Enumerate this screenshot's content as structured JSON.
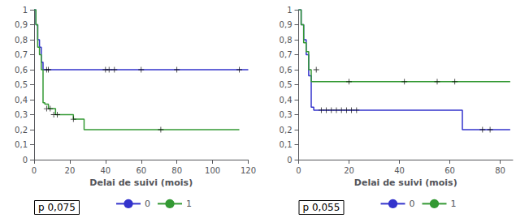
{
  "chart_data": [
    {
      "type": "step",
      "xlabel": "Delai de suivi (mois)",
      "annotation": "p 0,075",
      "legend": "bottom",
      "grid": false,
      "xlim": [
        0,
        120
      ],
      "ylim": [
        0,
        1
      ],
      "xticks": [
        0,
        20,
        40,
        60,
        80,
        100,
        120
      ],
      "yticks": [
        0,
        {
          "value": 0.1,
          "label": "0,1"
        },
        {
          "value": 0.2,
          "label": "0,2"
        },
        {
          "value": 0.3,
          "label": "0,3"
        },
        {
          "value": 0.4,
          "label": "0,4"
        },
        {
          "value": 0.5,
          "label": "0,5"
        },
        {
          "value": 0.6,
          "label": "0,6"
        },
        {
          "value": 0.7,
          "label": "0,7"
        },
        {
          "value": 0.8,
          "label": "0,8"
        },
        {
          "value": 0.9,
          "label": "0,9"
        },
        1
      ],
      "series": [
        {
          "name": "0",
          "color": "#3333cc",
          "x": [
            0,
            1,
            2,
            3,
            4,
            5,
            6,
            120
          ],
          "values": [
            1,
            0.9,
            0.8,
            0.75,
            0.65,
            0.6,
            0.6,
            0.6
          ]
        },
        {
          "name": "1",
          "color": "#339933",
          "x": [
            0,
            1,
            2,
            3,
            4,
            5,
            6,
            8,
            10,
            12,
            20,
            22,
            25,
            28,
            50,
            52,
            70,
            115
          ],
          "values": [
            1,
            0.9,
            0.75,
            0.7,
            0.6,
            0.38,
            0.37,
            0.34,
            0.34,
            0.3,
            0.3,
            0.27,
            0.27,
            0.2,
            0.2,
            0.2,
            0.2,
            0.2
          ]
        },
        {
          "type": "scatter",
          "marker": "plus",
          "color": "#000000",
          "x": [
            7,
            8,
            40,
            42,
            45,
            60,
            80,
            115
          ],
          "values": [
            0.6,
            0.6,
            0.6,
            0.6,
            0.6,
            0.6,
            0.6,
            0.6
          ]
        },
        {
          "type": "scatter",
          "marker": "plus",
          "color": "#000000",
          "x": [
            7,
            9,
            11,
            13,
            22,
            71
          ],
          "values": [
            0.34,
            0.34,
            0.3,
            0.3,
            0.27,
            0.2
          ]
        }
      ]
    },
    {
      "type": "step",
      "xlabel": "Delai de suivi (mois)",
      "annotation": "p 0,055",
      "legend": "bottom",
      "grid": false,
      "xlim": [
        0,
        85
      ],
      "ylim": [
        0,
        1
      ],
      "xticks": [
        0,
        20,
        40,
        60,
        80
      ],
      "yticks": [
        0,
        {
          "value": 0.1,
          "label": "0,1"
        },
        {
          "value": 0.2,
          "label": "0,2"
        },
        {
          "value": 0.3,
          "label": "0,3"
        },
        {
          "value": 0.4,
          "label": "0,4"
        },
        {
          "value": 0.5,
          "label": "0,5"
        },
        {
          "value": 0.6,
          "label": "0,6"
        },
        {
          "value": 0.7,
          "label": "0,7"
        },
        {
          "value": 0.8,
          "label": "0,8"
        },
        {
          "value": 0.9,
          "label": "0,9"
        },
        1
      ],
      "series": [
        {
          "name": "0",
          "color": "#3333cc",
          "x": [
            0,
            1,
            2,
            3,
            4,
            5,
            6,
            8,
            10,
            25,
            60,
            65,
            72,
            75,
            84
          ],
          "values": [
            1,
            0.9,
            0.8,
            0.7,
            0.56,
            0.35,
            0.33,
            0.33,
            0.33,
            0.33,
            0.33,
            0.2,
            0.2,
            0.2,
            0.2
          ]
        },
        {
          "name": "1",
          "color": "#339933",
          "x": [
            0,
            1,
            2,
            3,
            4,
            5,
            6,
            10,
            25,
            84
          ],
          "values": [
            1,
            0.9,
            0.78,
            0.72,
            0.6,
            0.52,
            0.52,
            0.52,
            0.52,
            0.52
          ]
        },
        {
          "type": "scatter",
          "marker": "plus",
          "color": "#000000",
          "x": [
            9,
            11,
            13,
            15,
            17,
            19,
            21,
            23,
            73,
            76
          ],
          "values": [
            0.33,
            0.33,
            0.33,
            0.33,
            0.33,
            0.33,
            0.33,
            0.33,
            0.2,
            0.2
          ]
        },
        {
          "type": "scatter",
          "marker": "plus",
          "color": "#000000",
          "x": [
            7,
            20,
            42,
            55,
            62
          ],
          "values": [
            0.6,
            0.52,
            0.52,
            0.52,
            0.52
          ]
        }
      ]
    }
  ]
}
